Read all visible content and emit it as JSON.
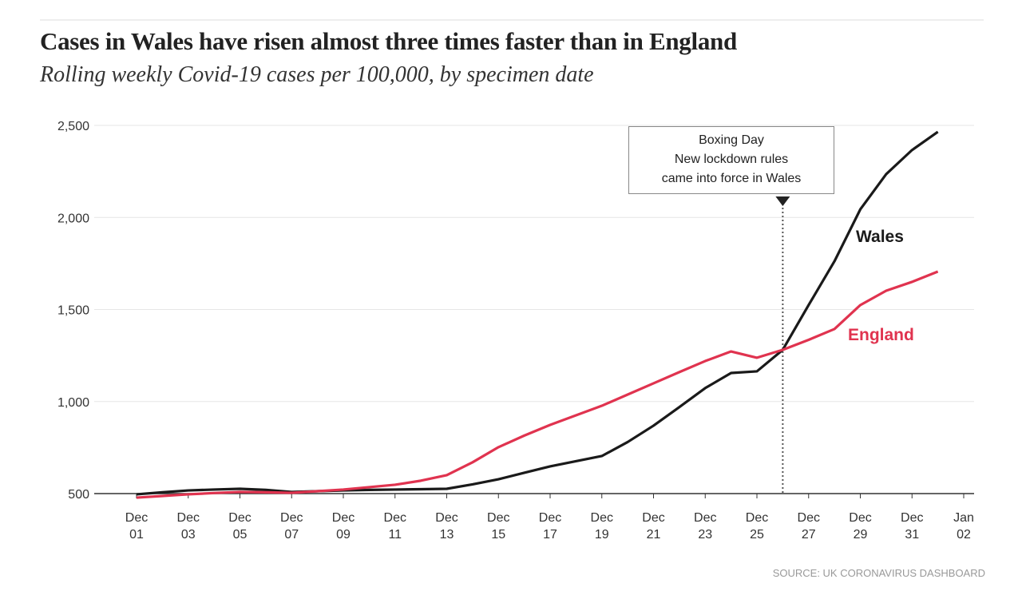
{
  "chart_data": {
    "type": "line",
    "title": "Cases in Wales have risen almost three times faster than in England",
    "subtitle": "Rolling weekly Covid-19 cases per 100,000, by specimen date",
    "source": "SOURCE: UK CORONAVIRUS DASHBOARD",
    "annotation": [
      "Boxing Day",
      "New lockdown rules",
      "came into force in Wales"
    ],
    "categories": [
      "Dec 01",
      null,
      "Dec 03",
      null,
      "Dec 05",
      null,
      "Dec 07",
      null,
      "Dec 09",
      null,
      "Dec 11",
      null,
      "Dec 13",
      null,
      "Dec 15",
      null,
      "Dec 17",
      null,
      "Dec 19",
      null,
      "Dec 21",
      null,
      "Dec 23",
      null,
      "Dec 25",
      null,
      "Dec 27",
      null,
      "Dec 29",
      null,
      "Dec 31",
      null,
      "Jan 02"
    ],
    "series": [
      {
        "name": "Wales",
        "color": "#1a1a1a",
        "values": [
          496,
          507,
          517,
          522,
          526,
          520,
          509,
          513,
          517,
          520,
          522,
          524,
          526,
          550,
          578,
          613,
          648,
          676,
          704,
          780,
          869,
          970,
          1073,
          1155,
          1164,
          1281,
          1524,
          1762,
          2044,
          2235,
          2366,
          2465,
          null
        ]
      },
      {
        "name": "England",
        "color": "#e0334f",
        "values": [
          478,
          487,
          496,
          503,
          509,
          507,
          504,
          513,
          522,
          535,
          548,
          570,
          600,
          670,
          752,
          815,
          873,
          925,
          977,
          1038,
          1099,
          1160,
          1220,
          1272,
          1238,
          1281,
          1335,
          1394,
          1524,
          1602,
          1650,
          1706,
          null
        ]
      }
    ],
    "ylim": [
      500,
      2500
    ],
    "yticks": [
      {
        "value": 500,
        "label": "500"
      },
      {
        "value": 1000,
        "label": "1,000"
      },
      {
        "value": 1500,
        "label": "1,500"
      },
      {
        "value": 2000,
        "label": "2,000"
      },
      {
        "value": 2500,
        "label": "2,500"
      }
    ],
    "grid": true
  }
}
